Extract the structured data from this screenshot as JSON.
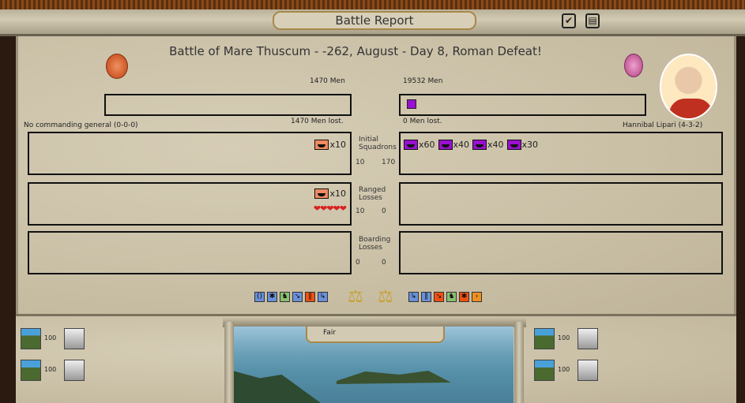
{
  "window": {
    "title": "Battle Report",
    "confirm_icon": "checkmark-icon",
    "info_icon": "document-icon"
  },
  "battle": {
    "title": "Battle of Mare Thuscum - -262, August - Day 8, Roman Defeat!",
    "weather": "Fair"
  },
  "left": {
    "men": "1470 Men",
    "men_lost": "1470 Men lost.",
    "general": "No commanding general (0-0-0)",
    "faction_color": "#e8703a",
    "initial": [
      {
        "count": "x10",
        "color": "#f08a60"
      }
    ],
    "initial_nums": [
      "10"
    ],
    "ranged": [
      {
        "count": "x10",
        "color": "#f08a60"
      }
    ],
    "ranged_nums": [
      "10"
    ],
    "hearts": 5,
    "boarding_nums": [
      "0"
    ],
    "stats": [
      "100",
      "100"
    ]
  },
  "right": {
    "men": "19532 Men",
    "men_lost": "0 Men lost.",
    "general": "Hannibal Lipari (4-3-2)",
    "faction_color": "#9a10d0",
    "initial": [
      {
        "count": "x60",
        "color": "#9a10d0"
      },
      {
        "count": "x40",
        "color": "#9a10d0"
      },
      {
        "count": "x40",
        "color": "#9a10d0"
      },
      {
        "count": "x30",
        "color": "#9a10d0"
      }
    ],
    "initial_nums": [
      "170"
    ],
    "ranged_nums": [
      "0"
    ],
    "boarding_nums": [
      "0"
    ],
    "stats": [
      "100",
      "100"
    ]
  },
  "labels": {
    "initial": [
      "Initial",
      "Squadrons"
    ],
    "ranged": [
      "Ranged",
      "Losses"
    ],
    "boarding": [
      "Boarding",
      "Losses"
    ]
  },
  "left_traits": [
    {
      "icon": "formation-icon",
      "color": "#6a90d8"
    },
    {
      "icon": "splat-icon",
      "color": "#6a90d8"
    },
    {
      "icon": "rider-icon",
      "color": "#8ac070"
    },
    {
      "icon": "charge-icon",
      "color": "#6a90d8"
    },
    {
      "icon": "troops-icon",
      "color": "#f05010"
    },
    {
      "icon": "flank-icon",
      "color": "#6a90d8"
    }
  ],
  "right_traits": [
    {
      "icon": "flank-icon",
      "color": "#6a90d8"
    },
    {
      "icon": "troops-icon",
      "color": "#6a90d8"
    },
    {
      "icon": "charge-icon",
      "color": "#f05010"
    },
    {
      "icon": "rider-icon",
      "color": "#8ac070"
    },
    {
      "icon": "splat-icon",
      "color": "#f05010"
    },
    {
      "icon": "arrow-icon",
      "color": "#f09020"
    }
  ]
}
